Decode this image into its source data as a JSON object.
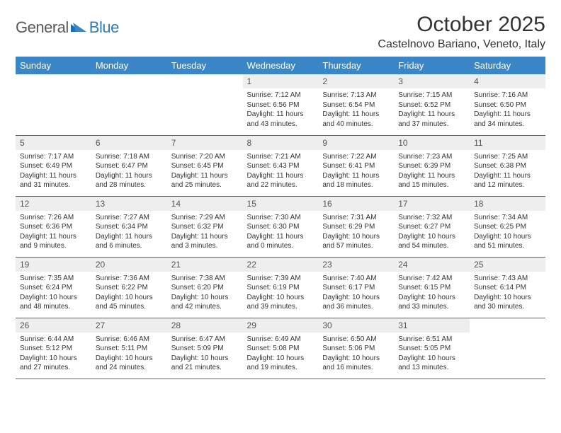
{
  "brand": {
    "text1": "General",
    "text2": "Blue"
  },
  "title": "October 2025",
  "location": "Castelnovo Bariano, Veneto, Italy",
  "colors": {
    "header_bg": "#3b86c6",
    "header_text": "#ffffff",
    "row_border": "#2f6fa8",
    "daynum_bg": "#eeeeee",
    "logo_gray": "#5a5a5a",
    "logo_blue": "#2b7bbf"
  },
  "font": {
    "title_size_pt": 22,
    "location_size_pt": 12,
    "dayheader_size_pt": 10,
    "body_size_pt": 7.5
  },
  "day_headers": [
    "Sunday",
    "Monday",
    "Tuesday",
    "Wednesday",
    "Thursday",
    "Friday",
    "Saturday"
  ],
  "weeks": [
    [
      {
        "n": "",
        "sr": "",
        "ss": "",
        "dl": "",
        "empty": true
      },
      {
        "n": "",
        "sr": "",
        "ss": "",
        "dl": "",
        "empty": true
      },
      {
        "n": "",
        "sr": "",
        "ss": "",
        "dl": "",
        "empty": true
      },
      {
        "n": "1",
        "sr": "Sunrise: 7:12 AM",
        "ss": "Sunset: 6:56 PM",
        "dl": "Daylight: 11 hours and 43 minutes."
      },
      {
        "n": "2",
        "sr": "Sunrise: 7:13 AM",
        "ss": "Sunset: 6:54 PM",
        "dl": "Daylight: 11 hours and 40 minutes."
      },
      {
        "n": "3",
        "sr": "Sunrise: 7:15 AM",
        "ss": "Sunset: 6:52 PM",
        "dl": "Daylight: 11 hours and 37 minutes."
      },
      {
        "n": "4",
        "sr": "Sunrise: 7:16 AM",
        "ss": "Sunset: 6:50 PM",
        "dl": "Daylight: 11 hours and 34 minutes."
      }
    ],
    [
      {
        "n": "5",
        "sr": "Sunrise: 7:17 AM",
        "ss": "Sunset: 6:49 PM",
        "dl": "Daylight: 11 hours and 31 minutes."
      },
      {
        "n": "6",
        "sr": "Sunrise: 7:18 AM",
        "ss": "Sunset: 6:47 PM",
        "dl": "Daylight: 11 hours and 28 minutes."
      },
      {
        "n": "7",
        "sr": "Sunrise: 7:20 AM",
        "ss": "Sunset: 6:45 PM",
        "dl": "Daylight: 11 hours and 25 minutes."
      },
      {
        "n": "8",
        "sr": "Sunrise: 7:21 AM",
        "ss": "Sunset: 6:43 PM",
        "dl": "Daylight: 11 hours and 22 minutes."
      },
      {
        "n": "9",
        "sr": "Sunrise: 7:22 AM",
        "ss": "Sunset: 6:41 PM",
        "dl": "Daylight: 11 hours and 18 minutes."
      },
      {
        "n": "10",
        "sr": "Sunrise: 7:23 AM",
        "ss": "Sunset: 6:39 PM",
        "dl": "Daylight: 11 hours and 15 minutes."
      },
      {
        "n": "11",
        "sr": "Sunrise: 7:25 AM",
        "ss": "Sunset: 6:38 PM",
        "dl": "Daylight: 11 hours and 12 minutes."
      }
    ],
    [
      {
        "n": "12",
        "sr": "Sunrise: 7:26 AM",
        "ss": "Sunset: 6:36 PM",
        "dl": "Daylight: 11 hours and 9 minutes."
      },
      {
        "n": "13",
        "sr": "Sunrise: 7:27 AM",
        "ss": "Sunset: 6:34 PM",
        "dl": "Daylight: 11 hours and 6 minutes."
      },
      {
        "n": "14",
        "sr": "Sunrise: 7:29 AM",
        "ss": "Sunset: 6:32 PM",
        "dl": "Daylight: 11 hours and 3 minutes."
      },
      {
        "n": "15",
        "sr": "Sunrise: 7:30 AM",
        "ss": "Sunset: 6:30 PM",
        "dl": "Daylight: 11 hours and 0 minutes."
      },
      {
        "n": "16",
        "sr": "Sunrise: 7:31 AM",
        "ss": "Sunset: 6:29 PM",
        "dl": "Daylight: 10 hours and 57 minutes."
      },
      {
        "n": "17",
        "sr": "Sunrise: 7:32 AM",
        "ss": "Sunset: 6:27 PM",
        "dl": "Daylight: 10 hours and 54 minutes."
      },
      {
        "n": "18",
        "sr": "Sunrise: 7:34 AM",
        "ss": "Sunset: 6:25 PM",
        "dl": "Daylight: 10 hours and 51 minutes."
      }
    ],
    [
      {
        "n": "19",
        "sr": "Sunrise: 7:35 AM",
        "ss": "Sunset: 6:24 PM",
        "dl": "Daylight: 10 hours and 48 minutes."
      },
      {
        "n": "20",
        "sr": "Sunrise: 7:36 AM",
        "ss": "Sunset: 6:22 PM",
        "dl": "Daylight: 10 hours and 45 minutes."
      },
      {
        "n": "21",
        "sr": "Sunrise: 7:38 AM",
        "ss": "Sunset: 6:20 PM",
        "dl": "Daylight: 10 hours and 42 minutes."
      },
      {
        "n": "22",
        "sr": "Sunrise: 7:39 AM",
        "ss": "Sunset: 6:19 PM",
        "dl": "Daylight: 10 hours and 39 minutes."
      },
      {
        "n": "23",
        "sr": "Sunrise: 7:40 AM",
        "ss": "Sunset: 6:17 PM",
        "dl": "Daylight: 10 hours and 36 minutes."
      },
      {
        "n": "24",
        "sr": "Sunrise: 7:42 AM",
        "ss": "Sunset: 6:15 PM",
        "dl": "Daylight: 10 hours and 33 minutes."
      },
      {
        "n": "25",
        "sr": "Sunrise: 7:43 AM",
        "ss": "Sunset: 6:14 PM",
        "dl": "Daylight: 10 hours and 30 minutes."
      }
    ],
    [
      {
        "n": "26",
        "sr": "Sunrise: 6:44 AM",
        "ss": "Sunset: 5:12 PM",
        "dl": "Daylight: 10 hours and 27 minutes."
      },
      {
        "n": "27",
        "sr": "Sunrise: 6:46 AM",
        "ss": "Sunset: 5:11 PM",
        "dl": "Daylight: 10 hours and 24 minutes."
      },
      {
        "n": "28",
        "sr": "Sunrise: 6:47 AM",
        "ss": "Sunset: 5:09 PM",
        "dl": "Daylight: 10 hours and 21 minutes."
      },
      {
        "n": "29",
        "sr": "Sunrise: 6:49 AM",
        "ss": "Sunset: 5:08 PM",
        "dl": "Daylight: 10 hours and 19 minutes."
      },
      {
        "n": "30",
        "sr": "Sunrise: 6:50 AM",
        "ss": "Sunset: 5:06 PM",
        "dl": "Daylight: 10 hours and 16 minutes."
      },
      {
        "n": "31",
        "sr": "Sunrise: 6:51 AM",
        "ss": "Sunset: 5:05 PM",
        "dl": "Daylight: 10 hours and 13 minutes."
      },
      {
        "n": "",
        "sr": "",
        "ss": "",
        "dl": "",
        "empty": true
      }
    ]
  ]
}
